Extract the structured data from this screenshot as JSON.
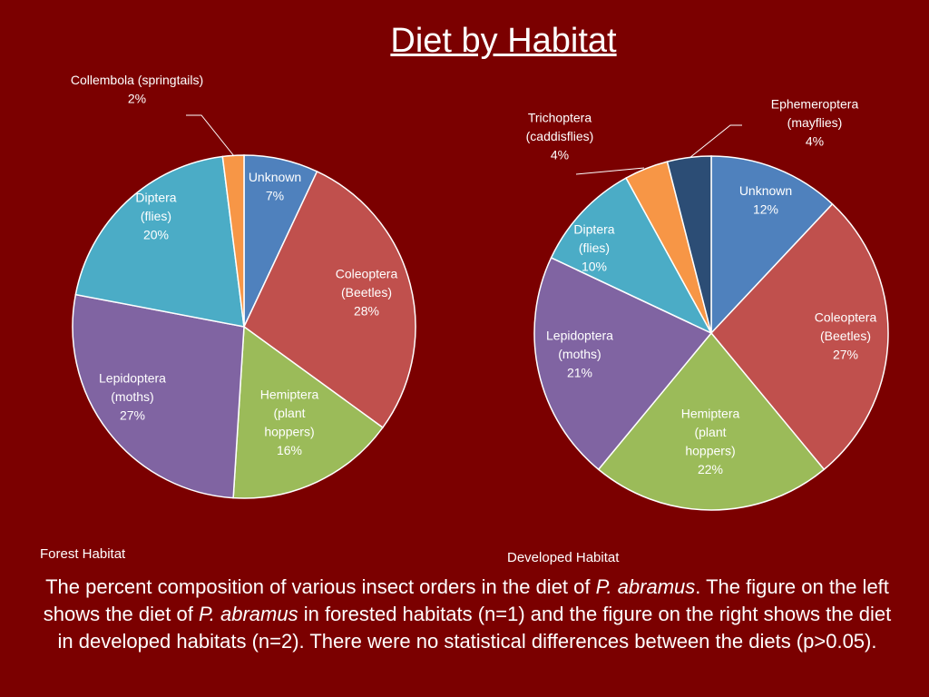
{
  "title": "Diet by Habitat",
  "chart_data": [
    {
      "type": "pie",
      "caption": "Forest Habitat",
      "slices": [
        {
          "label": [
            "Unknown"
          ],
          "pct": "7%",
          "value": 7,
          "color": "#4f81bd"
        },
        {
          "label": [
            "Coleoptera",
            "(Beetles)"
          ],
          "pct": "28%",
          "value": 28,
          "color": "#c0504d"
        },
        {
          "label": [
            "Hemiptera",
            "(plant",
            "hoppers)"
          ],
          "pct": "16%",
          "value": 16,
          "color": "#9bbb59"
        },
        {
          "label": [
            "Lepidoptera",
            "(moths)"
          ],
          "pct": "27%",
          "value": 27,
          "color": "#8064a2"
        },
        {
          "label": [
            "Diptera",
            "(flies)"
          ],
          "pct": "20%",
          "value": 20,
          "color": "#4bacc6"
        },
        {
          "label": [
            "Collembola (springtails)"
          ],
          "pct": "2%",
          "value": 2,
          "color": "#f79646"
        }
      ]
    },
    {
      "type": "pie",
      "caption": "Developed Habitat",
      "slices": [
        {
          "label": [
            "Unknown"
          ],
          "pct": "12%",
          "value": 12,
          "color": "#4f81bd"
        },
        {
          "label": [
            "Coleoptera",
            "(Beetles)"
          ],
          "pct": "27%",
          "value": 27,
          "color": "#c0504d"
        },
        {
          "label": [
            "Hemiptera",
            "(plant",
            "hoppers)"
          ],
          "pct": "22%",
          "value": 22,
          "color": "#9bbb59"
        },
        {
          "label": [
            "Lepidoptera",
            "(moths)"
          ],
          "pct": "21%",
          "value": 21,
          "color": "#8064a2"
        },
        {
          "label": [
            "Diptera",
            "(flies)"
          ],
          "pct": "10%",
          "value": 10,
          "color": "#4bacc6"
        },
        {
          "label": [
            "Trichoptera",
            "(caddisflies)"
          ],
          "pct": "4%",
          "value": 4,
          "color": "#f79646"
        },
        {
          "label": [
            "Ephemeroptera",
            "(mayflies)"
          ],
          "pct": "4%",
          "value": 4,
          "color": "#2c4d75"
        }
      ]
    }
  ],
  "description": {
    "p1": "The percent composition of various insect orders in the diet of ",
    "species1": "P. abramus",
    "p2": ". The figure on the left shows the diet of ",
    "species2": "P. abramus",
    "p3": " in forested habitats (n=1) and the figure on the right shows the diet in developed habitats (n=2). There were no statistical differences between the diets (p>0.05)."
  }
}
